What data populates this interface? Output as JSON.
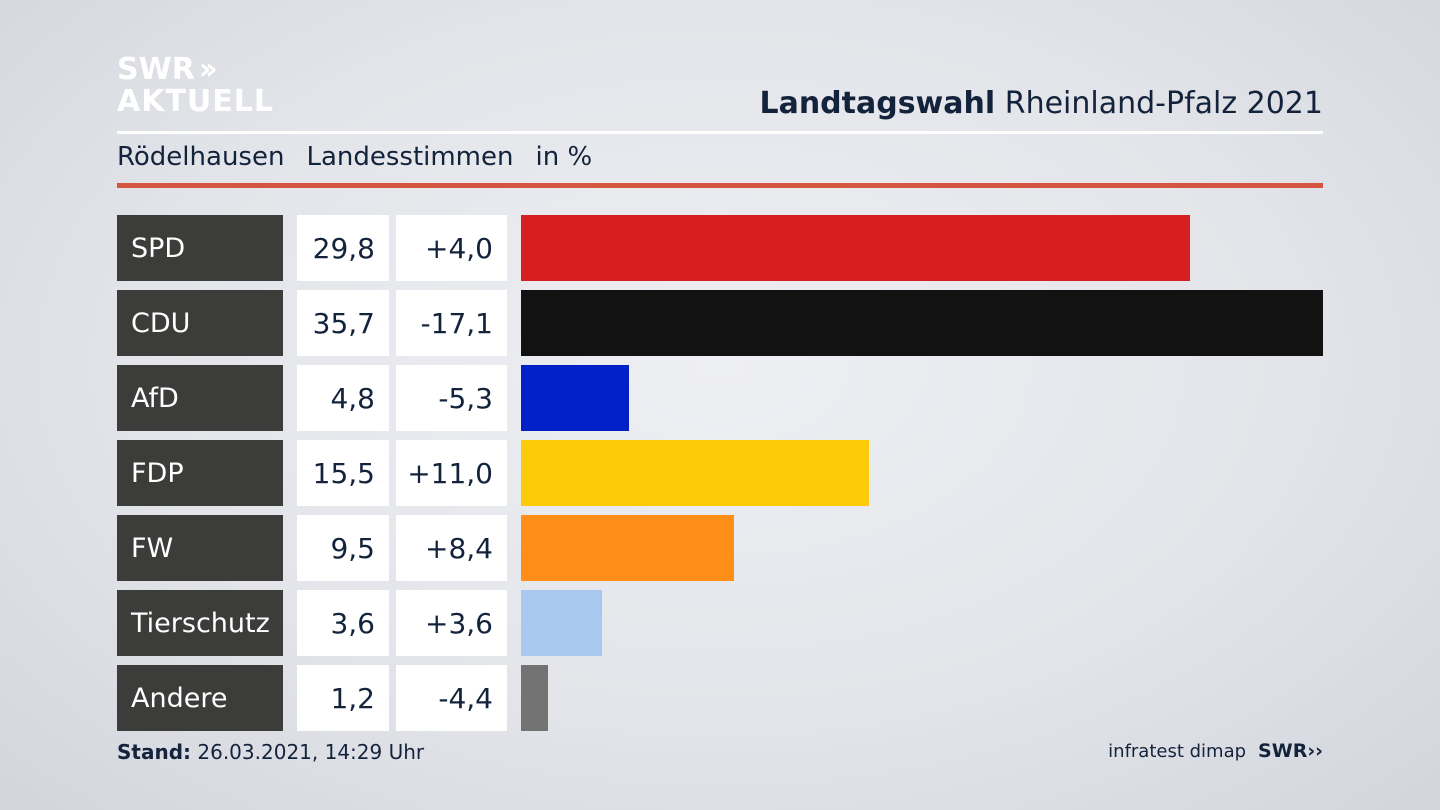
{
  "brand": {
    "logo_line1": "SWR",
    "logo_chevrons": "››",
    "logo_line2": "AKTUELL",
    "footer_source": "infratest dimap",
    "footer_logo": "SWR",
    "footer_chevrons": "››"
  },
  "header": {
    "title_bold": "Landtagswahl",
    "title_rest": "Rheinland-Pfalz 2021",
    "place": "Rödelhausen",
    "measure": "Landesstimmen",
    "unit": "in %"
  },
  "footer": {
    "stand_label": "Stand:",
    "stand_value": "26.03.2021, 14:29 Uhr"
  },
  "chart_data": {
    "type": "bar",
    "orientation": "horizontal",
    "categories": [
      "SPD",
      "CDU",
      "AfD",
      "FDP",
      "FW",
      "Tierschutz",
      "Andere"
    ],
    "values": [
      29.8,
      35.7,
      4.8,
      15.5,
      9.5,
      3.6,
      1.2
    ],
    "value_labels": [
      "29,8",
      "35,7",
      "4,8",
      "15,5",
      "9,5",
      "3,6",
      "1,2"
    ],
    "changes": [
      4.0,
      -17.1,
      -5.3,
      11.0,
      8.4,
      3.6,
      -4.4
    ],
    "change_labels": [
      "+4,0",
      "-17,1",
      "-5,3",
      "+11,0",
      "+8,4",
      "+3,6",
      "-4,4"
    ],
    "colors": [
      "#d81f1f",
      "#121212",
      "#0020c8",
      "#fdcb07",
      "#fe8e17",
      "#a9c8f0",
      "#737373"
    ],
    "title": "Landtagswahl Rheinland-Pfalz 2021",
    "subtitle": "Rödelhausen Landesstimmen in %",
    "xlim": [
      0,
      35.7
    ],
    "grid": false,
    "legend": "none"
  }
}
